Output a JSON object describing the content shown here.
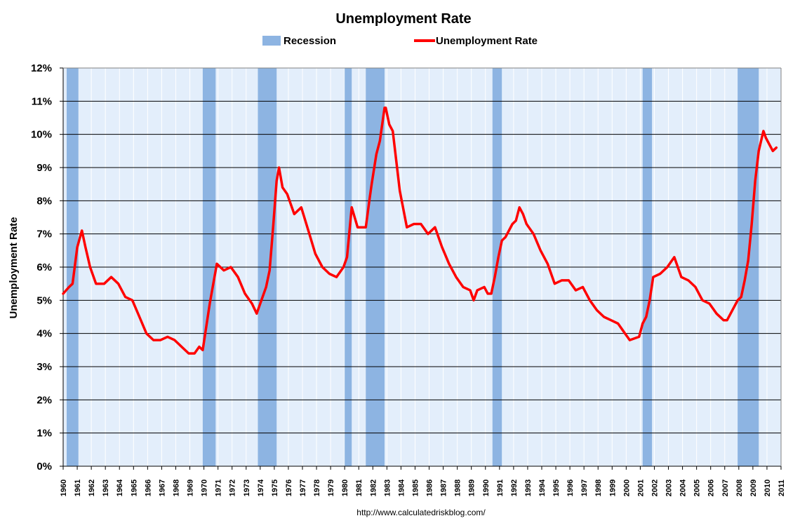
{
  "chart_data": {
    "type": "line",
    "title": "Unemployment Rate",
    "ylabel": "Unemployment Rate",
    "xlabel": "",
    "ylim": [
      0,
      12
    ],
    "xlim": [
      1960,
      2011
    ],
    "y_ticks": [
      "0%",
      "1%",
      "2%",
      "3%",
      "4%",
      "5%",
      "6%",
      "7%",
      "8%",
      "9%",
      "10%",
      "11%",
      "12%"
    ],
    "x_ticks": [
      "1960",
      "1961",
      "1962",
      "1963",
      "1964",
      "1965",
      "1966",
      "1967",
      "1968",
      "1969",
      "1970",
      "1971",
      "1972",
      "1973",
      "1974",
      "1975",
      "1976",
      "1977",
      "1978",
      "1979",
      "1980",
      "1981",
      "1982",
      "1983",
      "1984",
      "1985",
      "1986",
      "1987",
      "1988",
      "1989",
      "1990",
      "1991",
      "1992",
      "1993",
      "1994",
      "1995",
      "1996",
      "1997",
      "1998",
      "1999",
      "2000",
      "2001",
      "2002",
      "2003",
      "2004",
      "2005",
      "2006",
      "2007",
      "2008",
      "2009",
      "2010",
      "2011"
    ],
    "grid": true,
    "legend_position": "top",
    "legend": [
      {
        "name": "Recession",
        "type": "band",
        "color": "#8db4e2"
      },
      {
        "name": "Unemployment Rate",
        "type": "line",
        "color": "#ff0000"
      }
    ],
    "recessions": [
      {
        "start": "1960-04",
        "end": "1961-02"
      },
      {
        "start": "1969-12",
        "end": "1970-11"
      },
      {
        "start": "1973-11",
        "end": "1975-03"
      },
      {
        "start": "1980-01",
        "end": "1980-07"
      },
      {
        "start": "1981-07",
        "end": "1982-11"
      },
      {
        "start": "1990-07",
        "end": "1991-03"
      },
      {
        "start": "2001-03",
        "end": "2001-11"
      },
      {
        "start": "2007-12",
        "end": "2009-06"
      }
    ],
    "series": [
      {
        "name": "Unemployment Rate",
        "color": "#ff0000",
        "x": [
          "1960-01",
          "1960-06",
          "1960-09",
          "1961-01",
          "1961-05",
          "1961-08",
          "1961-12",
          "1962-05",
          "1962-12",
          "1963-06",
          "1963-12",
          "1964-06",
          "1964-12",
          "1965-06",
          "1965-12",
          "1966-06",
          "1966-12",
          "1967-06",
          "1967-12",
          "1968-06",
          "1968-12",
          "1969-05",
          "1969-09",
          "1969-12",
          "1970-06",
          "1970-12",
          "1971-06",
          "1971-12",
          "1972-06",
          "1972-12",
          "1973-06",
          "1973-10",
          "1974-03",
          "1974-06",
          "1974-09",
          "1974-12",
          "1975-03",
          "1975-05",
          "1975-08",
          "1975-12",
          "1976-06",
          "1976-12",
          "1977-06",
          "1977-12",
          "1978-06",
          "1978-12",
          "1979-06",
          "1979-12",
          "1980-03",
          "1980-07",
          "1980-12",
          "1981-04",
          "1981-07",
          "1981-10",
          "1981-12",
          "1982-04",
          "1982-07",
          "1982-11",
          "1982-12",
          "1983-03",
          "1983-06",
          "1983-09",
          "1983-12",
          "1984-06",
          "1984-12",
          "1985-06",
          "1985-12",
          "1986-06",
          "1986-12",
          "1987-06",
          "1987-12",
          "1988-06",
          "1988-12",
          "1989-03",
          "1989-06",
          "1989-12",
          "1990-03",
          "1990-06",
          "1990-09",
          "1990-12",
          "1991-03",
          "1991-06",
          "1991-12",
          "1992-03",
          "1992-06",
          "1992-09",
          "1992-12",
          "1993-06",
          "1993-12",
          "1994-06",
          "1994-12",
          "1995-06",
          "1995-12",
          "1996-06",
          "1996-12",
          "1997-06",
          "1997-12",
          "1998-06",
          "1998-12",
          "1999-06",
          "1999-12",
          "2000-04",
          "2000-12",
          "2001-03",
          "2001-06",
          "2001-09",
          "2001-12",
          "2002-06",
          "2002-12",
          "2003-06",
          "2003-12",
          "2004-06",
          "2004-12",
          "2005-06",
          "2005-12",
          "2006-06",
          "2006-12",
          "2007-03",
          "2007-06",
          "2007-12",
          "2008-03",
          "2008-06",
          "2008-09",
          "2008-12",
          "2009-03",
          "2009-06",
          "2009-10",
          "2009-12",
          "2010-03",
          "2010-06",
          "2010-09"
        ],
        "values": [
          5.2,
          5.4,
          5.5,
          6.6,
          7.1,
          6.6,
          6.0,
          5.5,
          5.5,
          5.7,
          5.5,
          5.1,
          5.0,
          4.5,
          4.0,
          3.8,
          3.8,
          3.9,
          3.8,
          3.6,
          3.4,
          3.4,
          3.6,
          3.5,
          4.9,
          6.1,
          5.9,
          6.0,
          5.7,
          5.2,
          4.9,
          4.6,
          5.1,
          5.4,
          5.9,
          7.2,
          8.6,
          9.0,
          8.4,
          8.2,
          7.6,
          7.8,
          7.1,
          6.4,
          6.0,
          5.8,
          5.7,
          6.0,
          6.3,
          7.8,
          7.2,
          7.2,
          7.2,
          8.0,
          8.5,
          9.4,
          9.8,
          10.8,
          10.8,
          10.3,
          10.1,
          9.2,
          8.3,
          7.2,
          7.3,
          7.3,
          7.0,
          7.2,
          6.6,
          6.1,
          5.7,
          5.4,
          5.3,
          5.0,
          5.3,
          5.4,
          5.2,
          5.2,
          5.7,
          6.3,
          6.8,
          6.9,
          7.3,
          7.4,
          7.8,
          7.6,
          7.3,
          7.0,
          6.5,
          6.1,
          5.5,
          5.6,
          5.6,
          5.3,
          5.4,
          5.0,
          4.7,
          4.5,
          4.4,
          4.3,
          4.0,
          3.8,
          3.9,
          4.3,
          4.5,
          5.0,
          5.7,
          5.8,
          6.0,
          6.3,
          5.7,
          5.6,
          5.4,
          5.0,
          4.9,
          4.6,
          4.4,
          4.4,
          4.6,
          5.0,
          5.1,
          5.6,
          6.2,
          7.3,
          8.6,
          9.5,
          10.1,
          9.9,
          9.7,
          9.5,
          9.6
        ]
      }
    ],
    "source_text": "http://www.calculatedriskblog.com/"
  },
  "colors": {
    "plot_background": "#e3eefb",
    "gridline": "#000000",
    "year_divider": "#ffffff",
    "recession_band": "#8db4e2",
    "line": "#ff0000"
  }
}
